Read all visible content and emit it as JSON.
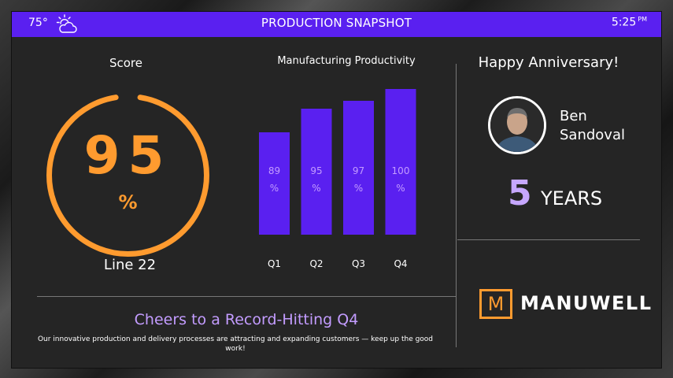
{
  "header": {
    "temperature": "75°",
    "weather_icon": "partly-cloudy-icon",
    "title": "PRODUCTION SNAPSHOT",
    "time": "5:25",
    "time_suffix": "PM",
    "bar_color": "#5a20f0"
  },
  "score": {
    "title": "Score",
    "value": "95",
    "unit": "%",
    "line": "Line 22",
    "gauge_percent": 95,
    "color": "#ff9b2f"
  },
  "chart_data": {
    "type": "bar",
    "title": "Manufacturing Productivity",
    "categories": [
      "Q1",
      "Q2",
      "Q3",
      "Q4"
    ],
    "values": [
      89,
      95,
      97,
      100
    ],
    "data_labels": [
      "89\n%",
      "95\n%",
      "97\n%",
      "100\n%"
    ],
    "xlabel": "",
    "ylabel": "",
    "ylim": [
      0,
      100
    ],
    "grid": false,
    "bar_color": "#5a20f0",
    "label_color": "#c39cff"
  },
  "anniversary": {
    "title": "Happy Anniversary!",
    "first_name": "Ben",
    "last_name": "Sandoval",
    "years": "5",
    "years_label": "YEARS"
  },
  "brand": {
    "logo_letter": "M",
    "name": "MANUWELL",
    "accent": "#ff9b2f"
  },
  "footer": {
    "headline": "Cheers to a Record-Hitting Q4",
    "message": "Our innovative production and delivery processes are attracting and expanding customers — keep up the good work!"
  }
}
